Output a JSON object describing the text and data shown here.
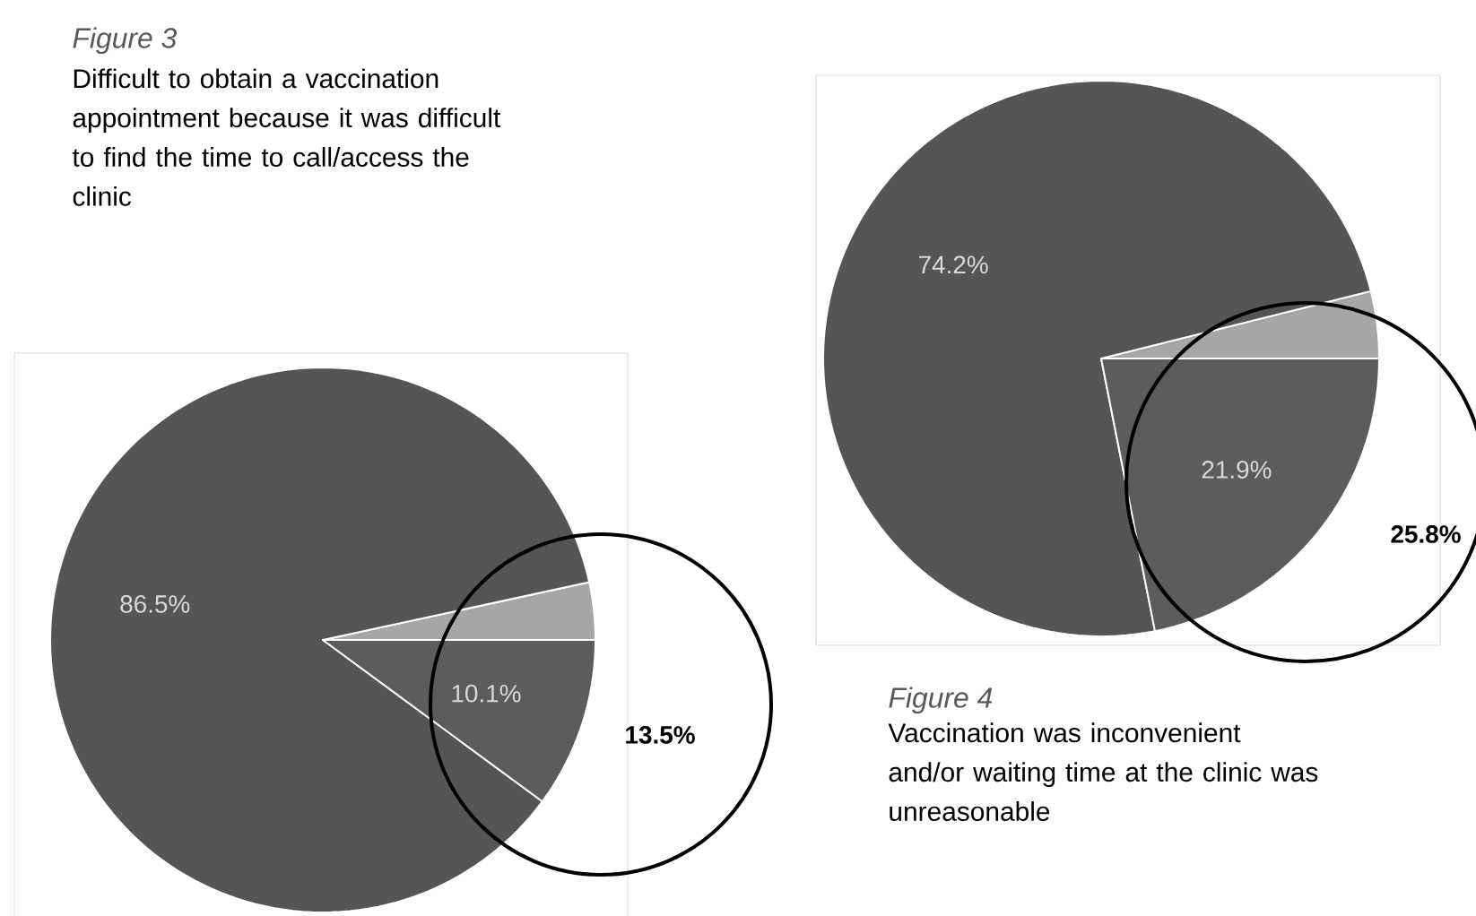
{
  "chart_data": [
    {
      "type": "pie",
      "title": "Figure 3",
      "subtitle": "Difficult to obtain a vaccination appointment because it was difficult to find the time to call/access the clinic",
      "categories": [
        null,
        null,
        null
      ],
      "values": [
        3.4,
        86.5,
        10.1
      ],
      "colors": [
        "#a6a6a6",
        "#555555",
        "#5c5c5c"
      ],
      "value_labels": [
        null,
        "86.5%",
        "10.1%"
      ],
      "annotations": [
        "13.5%"
      ]
    },
    {
      "type": "pie",
      "title": "Figure 4",
      "subtitle": "Vaccination was inconvenient and/or waiting time at the clinic was unreasonable",
      "categories": [
        null,
        null,
        null
      ],
      "values": [
        3.9,
        74.2,
        21.9
      ],
      "colors": [
        "#a6a6a6",
        "#555555",
        "#5c5c5c"
      ],
      "value_labels": [
        null,
        "74.2%",
        "21.9%"
      ],
      "annotations": [
        "25.8%"
      ]
    }
  ]
}
